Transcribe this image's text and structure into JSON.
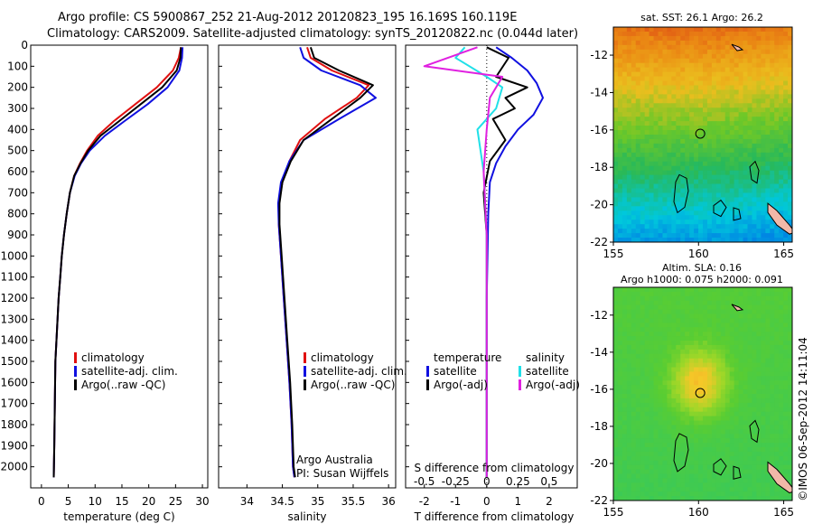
{
  "header": {
    "line1": "Argo profile: CS 5900867_252 21-Aug-2012 20120823_195 16.169S 160.119E",
    "line2": "Climatology: CARS2009. Satellite-adjusted climatology: synTS_20120822.nc (0.044d later)"
  },
  "side_stamp": "©IMOS 06-Sep-2012 14:11:04",
  "colors": {
    "climatology": "#e01010",
    "satellite": "#1010e0",
    "argo": "#000000",
    "sat_salinity": "#20e0e8",
    "argo_salinity": "#e020e0"
  },
  "chart_data": [
    {
      "type": "line",
      "id": "temperature",
      "xlabel": "temperature (deg C)",
      "ylabel": "",
      "xlim": [
        -2,
        31
      ],
      "ylim": [
        2100,
        0
      ],
      "xticks": [
        "0",
        "5",
        "10",
        "15",
        "20",
        "25",
        "30"
      ],
      "yticks": [
        "0",
        "100",
        "200",
        "300",
        "400",
        "500",
        "600",
        "700",
        "800",
        "900",
        "1000",
        "1100",
        "1200",
        "1300",
        "1400",
        "1500",
        "1600",
        "1700",
        "1800",
        "1900",
        "2000"
      ],
      "legend": [
        "climatology",
        "satellite-adj. clim.",
        "Argo(..raw -QC)"
      ],
      "series": [
        {
          "name": "climatology",
          "color": "#e01010",
          "x": [
            26.0,
            25.6,
            24.5,
            21.5,
            17.5,
            13.5,
            10.5,
            8.5,
            7.2,
            6.1,
            5.3,
            4.7,
            4.2,
            3.8,
            3.5,
            3.2,
            3.0,
            2.8,
            2.6,
            2.5,
            2.4,
            2.3
          ],
          "y": [
            10,
            60,
            120,
            200,
            280,
            360,
            430,
            500,
            560,
            620,
            700,
            800,
            900,
            1000,
            1100,
            1200,
            1300,
            1400,
            1500,
            1700,
            1900,
            2050
          ]
        },
        {
          "name": "satellite-adj. clim.",
          "color": "#1010e0",
          "x": [
            26.3,
            26.2,
            25.7,
            23.5,
            19.8,
            15.5,
            11.8,
            9.0,
            7.4,
            6.2,
            5.3,
            4.7,
            4.2,
            3.8,
            3.5,
            3.2,
            3.0,
            2.8,
            2.6,
            2.5,
            2.4,
            2.3
          ],
          "y": [
            10,
            60,
            120,
            200,
            280,
            360,
            430,
            500,
            560,
            620,
            700,
            800,
            900,
            1000,
            1100,
            1200,
            1300,
            1400,
            1500,
            1700,
            1900,
            2050
          ]
        },
        {
          "name": "Argo(..raw -QC)",
          "color": "#000000",
          "x": [
            26.0,
            25.9,
            25.2,
            22.5,
            18.5,
            14.5,
            11.0,
            8.7,
            7.3,
            6.1,
            5.3,
            4.7,
            4.2,
            3.8,
            3.5,
            3.2,
            3.0,
            2.8,
            2.6,
            2.5,
            2.4,
            2.3
          ],
          "y": [
            10,
            60,
            120,
            200,
            280,
            360,
            430,
            500,
            560,
            620,
            700,
            800,
            900,
            1000,
            1100,
            1200,
            1300,
            1400,
            1500,
            1700,
            1900,
            2050
          ]
        }
      ]
    },
    {
      "type": "line",
      "id": "salinity",
      "xlabel": "salinity",
      "xlim": [
        33.6,
        36.1
      ],
      "ylim": [
        2100,
        0
      ],
      "xticks": [
        "34",
        "34.5",
        "35",
        "35.5",
        "36"
      ],
      "legend": [
        "climatology",
        "satellite-adj. clim.",
        "Argo(..raw -QC)"
      ],
      "annotation": [
        "Argo Australia",
        "PI: Susan Wijffels"
      ],
      "series": [
        {
          "name": "climatology",
          "color": "#e01010",
          "x": [
            34.85,
            34.9,
            35.2,
            35.72,
            35.55,
            35.1,
            34.75,
            34.6,
            34.5,
            34.45,
            34.45,
            34.48,
            34.52,
            34.56,
            34.6,
            34.63,
            34.65,
            34.67
          ],
          "y": [
            10,
            60,
            120,
            190,
            250,
            350,
            450,
            550,
            650,
            750,
            850,
            1000,
            1200,
            1400,
            1600,
            1800,
            2000,
            2050
          ]
        },
        {
          "name": "satellite-adj. clim.",
          "color": "#1010e0",
          "x": [
            34.75,
            34.8,
            35.05,
            35.6,
            35.82,
            35.3,
            34.8,
            34.6,
            34.48,
            34.44,
            34.45,
            34.48,
            34.52,
            34.56,
            34.6,
            34.63,
            34.65,
            34.67
          ],
          "y": [
            10,
            60,
            120,
            190,
            250,
            350,
            450,
            550,
            650,
            750,
            850,
            1000,
            1200,
            1400,
            1600,
            1800,
            2000,
            2050
          ]
        },
        {
          "name": "Argo(..raw -QC)",
          "color": "#000000",
          "x": [
            34.9,
            34.95,
            35.3,
            35.78,
            35.6,
            35.2,
            34.8,
            34.62,
            34.5,
            34.46,
            34.46,
            34.49,
            34.53,
            34.57,
            34.61,
            34.64,
            34.66,
            34.68
          ],
          "y": [
            10,
            60,
            120,
            190,
            250,
            350,
            450,
            550,
            650,
            750,
            850,
            1000,
            1200,
            1400,
            1600,
            1800,
            2000,
            2050
          ]
        }
      ]
    },
    {
      "type": "line",
      "id": "difference",
      "xlabel": "T difference from climatology",
      "xlabel_top": "S difference from climatology",
      "xlim": [
        -2.6,
        2.9
      ],
      "ylim": [
        2100,
        0
      ],
      "xticks": [
        "-2",
        "-1",
        "0",
        "1",
        "2"
      ],
      "xticks_s": [
        "-0.5",
        "-0.25",
        "0",
        "0.25",
        "0.5"
      ],
      "legend_temperature": [
        "temperature",
        "satellite",
        "Argo(-adj)"
      ],
      "legend_salinity": [
        "salinity",
        "satellite",
        "Argo(-adj)"
      ],
      "series": [
        {
          "name": "temperature satellite",
          "color": "#1010e0",
          "x": [
            0.3,
            0.8,
            1.3,
            1.6,
            1.8,
            1.5,
            1.0,
            0.6,
            0.3,
            0.1,
            0.05,
            0.0,
            0.0,
            0.0
          ],
          "y": [
            10,
            60,
            120,
            180,
            250,
            330,
            400,
            480,
            560,
            650,
            800,
            1200,
            1600,
            2050
          ]
        },
        {
          "name": "temperature Argo(-adj)",
          "color": "#000000",
          "x": [
            0.0,
            0.7,
            0.3,
            1.3,
            0.6,
            0.9,
            0.2,
            0.6,
            0.1,
            -0.1,
            0.0,
            0.0,
            0.0,
            0.0
          ],
          "y": [
            10,
            60,
            150,
            200,
            250,
            300,
            350,
            450,
            550,
            700,
            900,
            1200,
            1600,
            2050
          ]
        },
        {
          "name": "salinity satellite",
          "color": "#20e0e8",
          "x": [
            -0.7,
            -1.0,
            0.0,
            0.5,
            0.3,
            -0.3,
            -0.1,
            0.0,
            0.0,
            0.0
          ],
          "y": [
            10,
            60,
            150,
            200,
            300,
            400,
            600,
            900,
            1500,
            2050
          ]
        },
        {
          "name": "salinity Argo(-adj)",
          "color": "#e020e0",
          "x": [
            -0.3,
            -2.0,
            0.5,
            0.1,
            0.0,
            -0.1,
            0.0,
            0.0
          ],
          "y": [
            10,
            100,
            150,
            250,
            400,
            600,
            900,
            2050
          ]
        }
      ]
    },
    {
      "type": "heatmap",
      "id": "sst_map",
      "title": "sat. SST: 26.1 Argo: 26.2",
      "xticks": [
        "155",
        "160",
        "165"
      ],
      "yticks": [
        "-12",
        "-14",
        "-16",
        "-18",
        "-20",
        "-22"
      ],
      "xlim": [
        155,
        165.5
      ],
      "ylim": [
        -22,
        -10.5
      ],
      "float_location": [
        160.1,
        -16.2
      ]
    },
    {
      "type": "heatmap",
      "id": "sla_map",
      "title": "Altim. SLA: 0.16",
      "subtitle": "Argo h1000: 0.075 h2000: 0.091",
      "xticks": [
        "155",
        "160",
        "165"
      ],
      "yticks": [
        "-12",
        "-14",
        "-16",
        "-18",
        "-20",
        "-22"
      ],
      "xlim": [
        155,
        165.5
      ],
      "ylim": [
        -22,
        -10.5
      ],
      "float_location": [
        160.1,
        -16.2
      ]
    }
  ]
}
